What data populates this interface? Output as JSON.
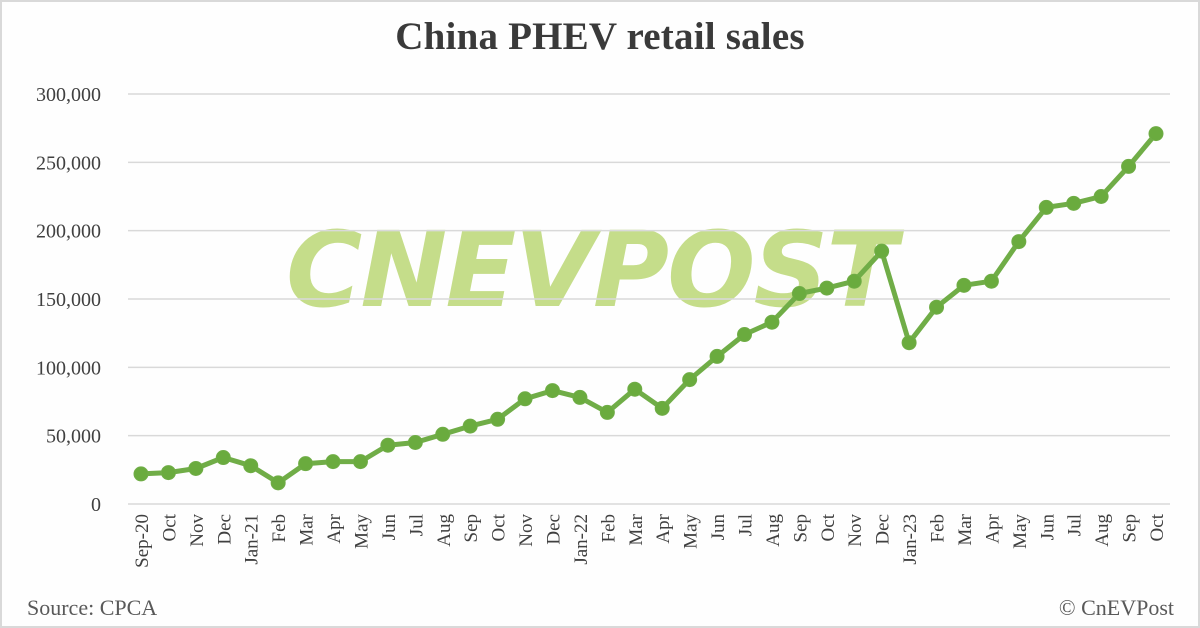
{
  "title": "China PHEV retail sales",
  "footer": {
    "source": "Source: CPCA",
    "credit": "© CnEVPost"
  },
  "watermark": "CNEVPOST",
  "colors": {
    "line": "#70ad47",
    "marker": "#6aab3e",
    "watermark": "#c5dd8a",
    "grid": "#d9d9d9",
    "text": "#404040"
  },
  "chart_data": {
    "type": "line",
    "title": "China PHEV retail sales",
    "xlabel": "",
    "ylabel": "",
    "ylim": [
      0,
      300000
    ],
    "yticks": [
      0,
      50000,
      100000,
      150000,
      200000,
      250000,
      300000
    ],
    "ytick_labels": [
      "0",
      "50,000",
      "100,000",
      "150,000",
      "200,000",
      "250,000",
      "300,000"
    ],
    "grid": true,
    "legend": "none",
    "categories": [
      "Sep-20",
      "Oct",
      "Nov",
      "Dec",
      "Jan-21",
      "Feb",
      "Mar",
      "Apr",
      "May",
      "Jun",
      "Jul",
      "Aug",
      "Sep",
      "Oct",
      "Nov",
      "Dec",
      "Jan-22",
      "Feb",
      "Mar",
      "Apr",
      "May",
      "Jun",
      "Jul",
      "Aug",
      "Sep",
      "Oct",
      "Nov",
      "Dec",
      "Jan-23",
      "Feb",
      "Mar",
      "Apr",
      "May",
      "Jun",
      "Jul",
      "Aug",
      "Sep",
      "Oct"
    ],
    "series": [
      {
        "name": "PHEV retail sales",
        "values": [
          22000,
          23000,
          26000,
          34000,
          28000,
          15500,
          29500,
          31000,
          31000,
          43000,
          45000,
          51000,
          57000,
          62000,
          77000,
          83000,
          78000,
          67000,
          84000,
          70000,
          91000,
          108000,
          124000,
          133000,
          154000,
          158000,
          163000,
          185000,
          118000,
          144000,
          160000,
          163000,
          192000,
          217000,
          220000,
          225000,
          247000,
          271000
        ]
      }
    ],
    "annotations": [
      "Source: CPCA",
      "© CnEVPost"
    ]
  }
}
